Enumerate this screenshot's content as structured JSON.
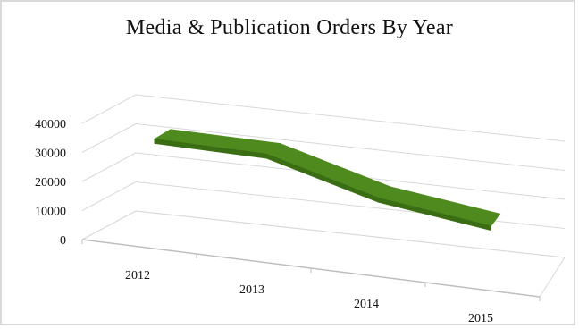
{
  "chart_data": {
    "type": "line",
    "style": "3d-ribbon",
    "title": "Media & Publication Orders By Year",
    "categories": [
      "2012",
      "2013",
      "2014",
      "2015"
    ],
    "series": [
      {
        "values": [
          34000,
          33500,
          23000,
          18000
        ]
      }
    ],
    "y_ticks": [
      "40000",
      "30000",
      "20000",
      "10000",
      "0"
    ],
    "ylim": [
      0,
      40000
    ],
    "grid": true,
    "colors": {
      "ribbon_top": "#4e8a1e",
      "ribbon_side": "#3b6e14",
      "grid": "#d9d9d9",
      "axis": "#bfbfbf"
    }
  }
}
